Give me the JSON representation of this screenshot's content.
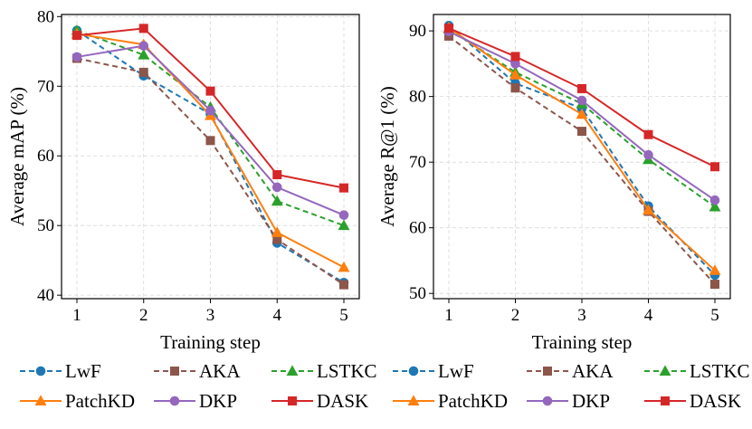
{
  "chart_data": [
    {
      "type": "line",
      "xlabel": "Training step",
      "ylabel": "Average mAP (%)",
      "x": [
        1,
        2,
        3,
        4,
        5
      ],
      "xticks": [
        "1",
        "2",
        "3",
        "4",
        "5"
      ],
      "ylim": [
        39.5,
        80.3
      ],
      "yticks": [
        "40",
        "50",
        "60",
        "70",
        "80"
      ],
      "grid": true,
      "series": [
        {
          "name": "LwF",
          "values": [
            78.0,
            71.5,
            66.0,
            47.5,
            41.8
          ],
          "color": "#1f77b4",
          "dash": "dashed",
          "marker": "circle"
        },
        {
          "name": "AKA",
          "values": [
            74.0,
            72.0,
            62.2,
            48.0,
            41.5
          ],
          "color": "#8c564b",
          "dash": "dashed",
          "marker": "square"
        },
        {
          "name": "LSTKC",
          "values": [
            78.0,
            74.5,
            67.0,
            53.5,
            50.0
          ],
          "color": "#2ca02c",
          "dash": "dashed",
          "marker": "triangle"
        },
        {
          "name": "PatchKD",
          "values": [
            77.5,
            76.0,
            65.8,
            49.0,
            44.0
          ],
          "color": "#ff7f0e",
          "dash": "solid",
          "marker": "triangle"
        },
        {
          "name": "DKP",
          "values": [
            74.2,
            75.8,
            66.5,
            55.5,
            51.5
          ],
          "color": "#9467bd",
          "dash": "solid",
          "marker": "circle"
        },
        {
          "name": "DASK",
          "values": [
            77.3,
            78.3,
            69.3,
            57.3,
            55.4
          ],
          "color": "#d62728",
          "dash": "solid",
          "marker": "square"
        }
      ]
    },
    {
      "type": "line",
      "xlabel": "Training step",
      "ylabel": "Average R@1 (%)",
      "x": [
        1,
        2,
        3,
        4,
        5
      ],
      "xticks": [
        "1",
        "2",
        "3",
        "4",
        "5"
      ],
      "ylim": [
        49.2,
        92.5
      ],
      "yticks": [
        "50",
        "60",
        "70",
        "80",
        "90"
      ],
      "grid": true,
      "series": [
        {
          "name": "LwF",
          "values": [
            90.8,
            82.0,
            78.2,
            63.3,
            52.8
          ],
          "color": "#1f77b4",
          "dash": "dashed",
          "marker": "circle"
        },
        {
          "name": "AKA",
          "values": [
            89.2,
            81.3,
            74.7,
            62.5,
            51.4
          ],
          "color": "#8c564b",
          "dash": "dashed",
          "marker": "square"
        },
        {
          "name": "LSTKC",
          "values": [
            90.3,
            83.7,
            78.9,
            70.4,
            63.2
          ],
          "color": "#2ca02c",
          "dash": "dashed",
          "marker": "triangle"
        },
        {
          "name": "PatchKD",
          "values": [
            90.5,
            83.3,
            77.3,
            62.7,
            53.5
          ],
          "color": "#ff7f0e",
          "dash": "solid",
          "marker": "triangle"
        },
        {
          "name": "DKP",
          "values": [
            89.9,
            85.0,
            79.4,
            71.1,
            64.2
          ],
          "color": "#9467bd",
          "dash": "solid",
          "marker": "circle"
        },
        {
          "name": "DASK",
          "values": [
            90.4,
            86.1,
            81.2,
            74.2,
            69.3
          ],
          "color": "#d62728",
          "dash": "solid",
          "marker": "square"
        }
      ]
    }
  ]
}
